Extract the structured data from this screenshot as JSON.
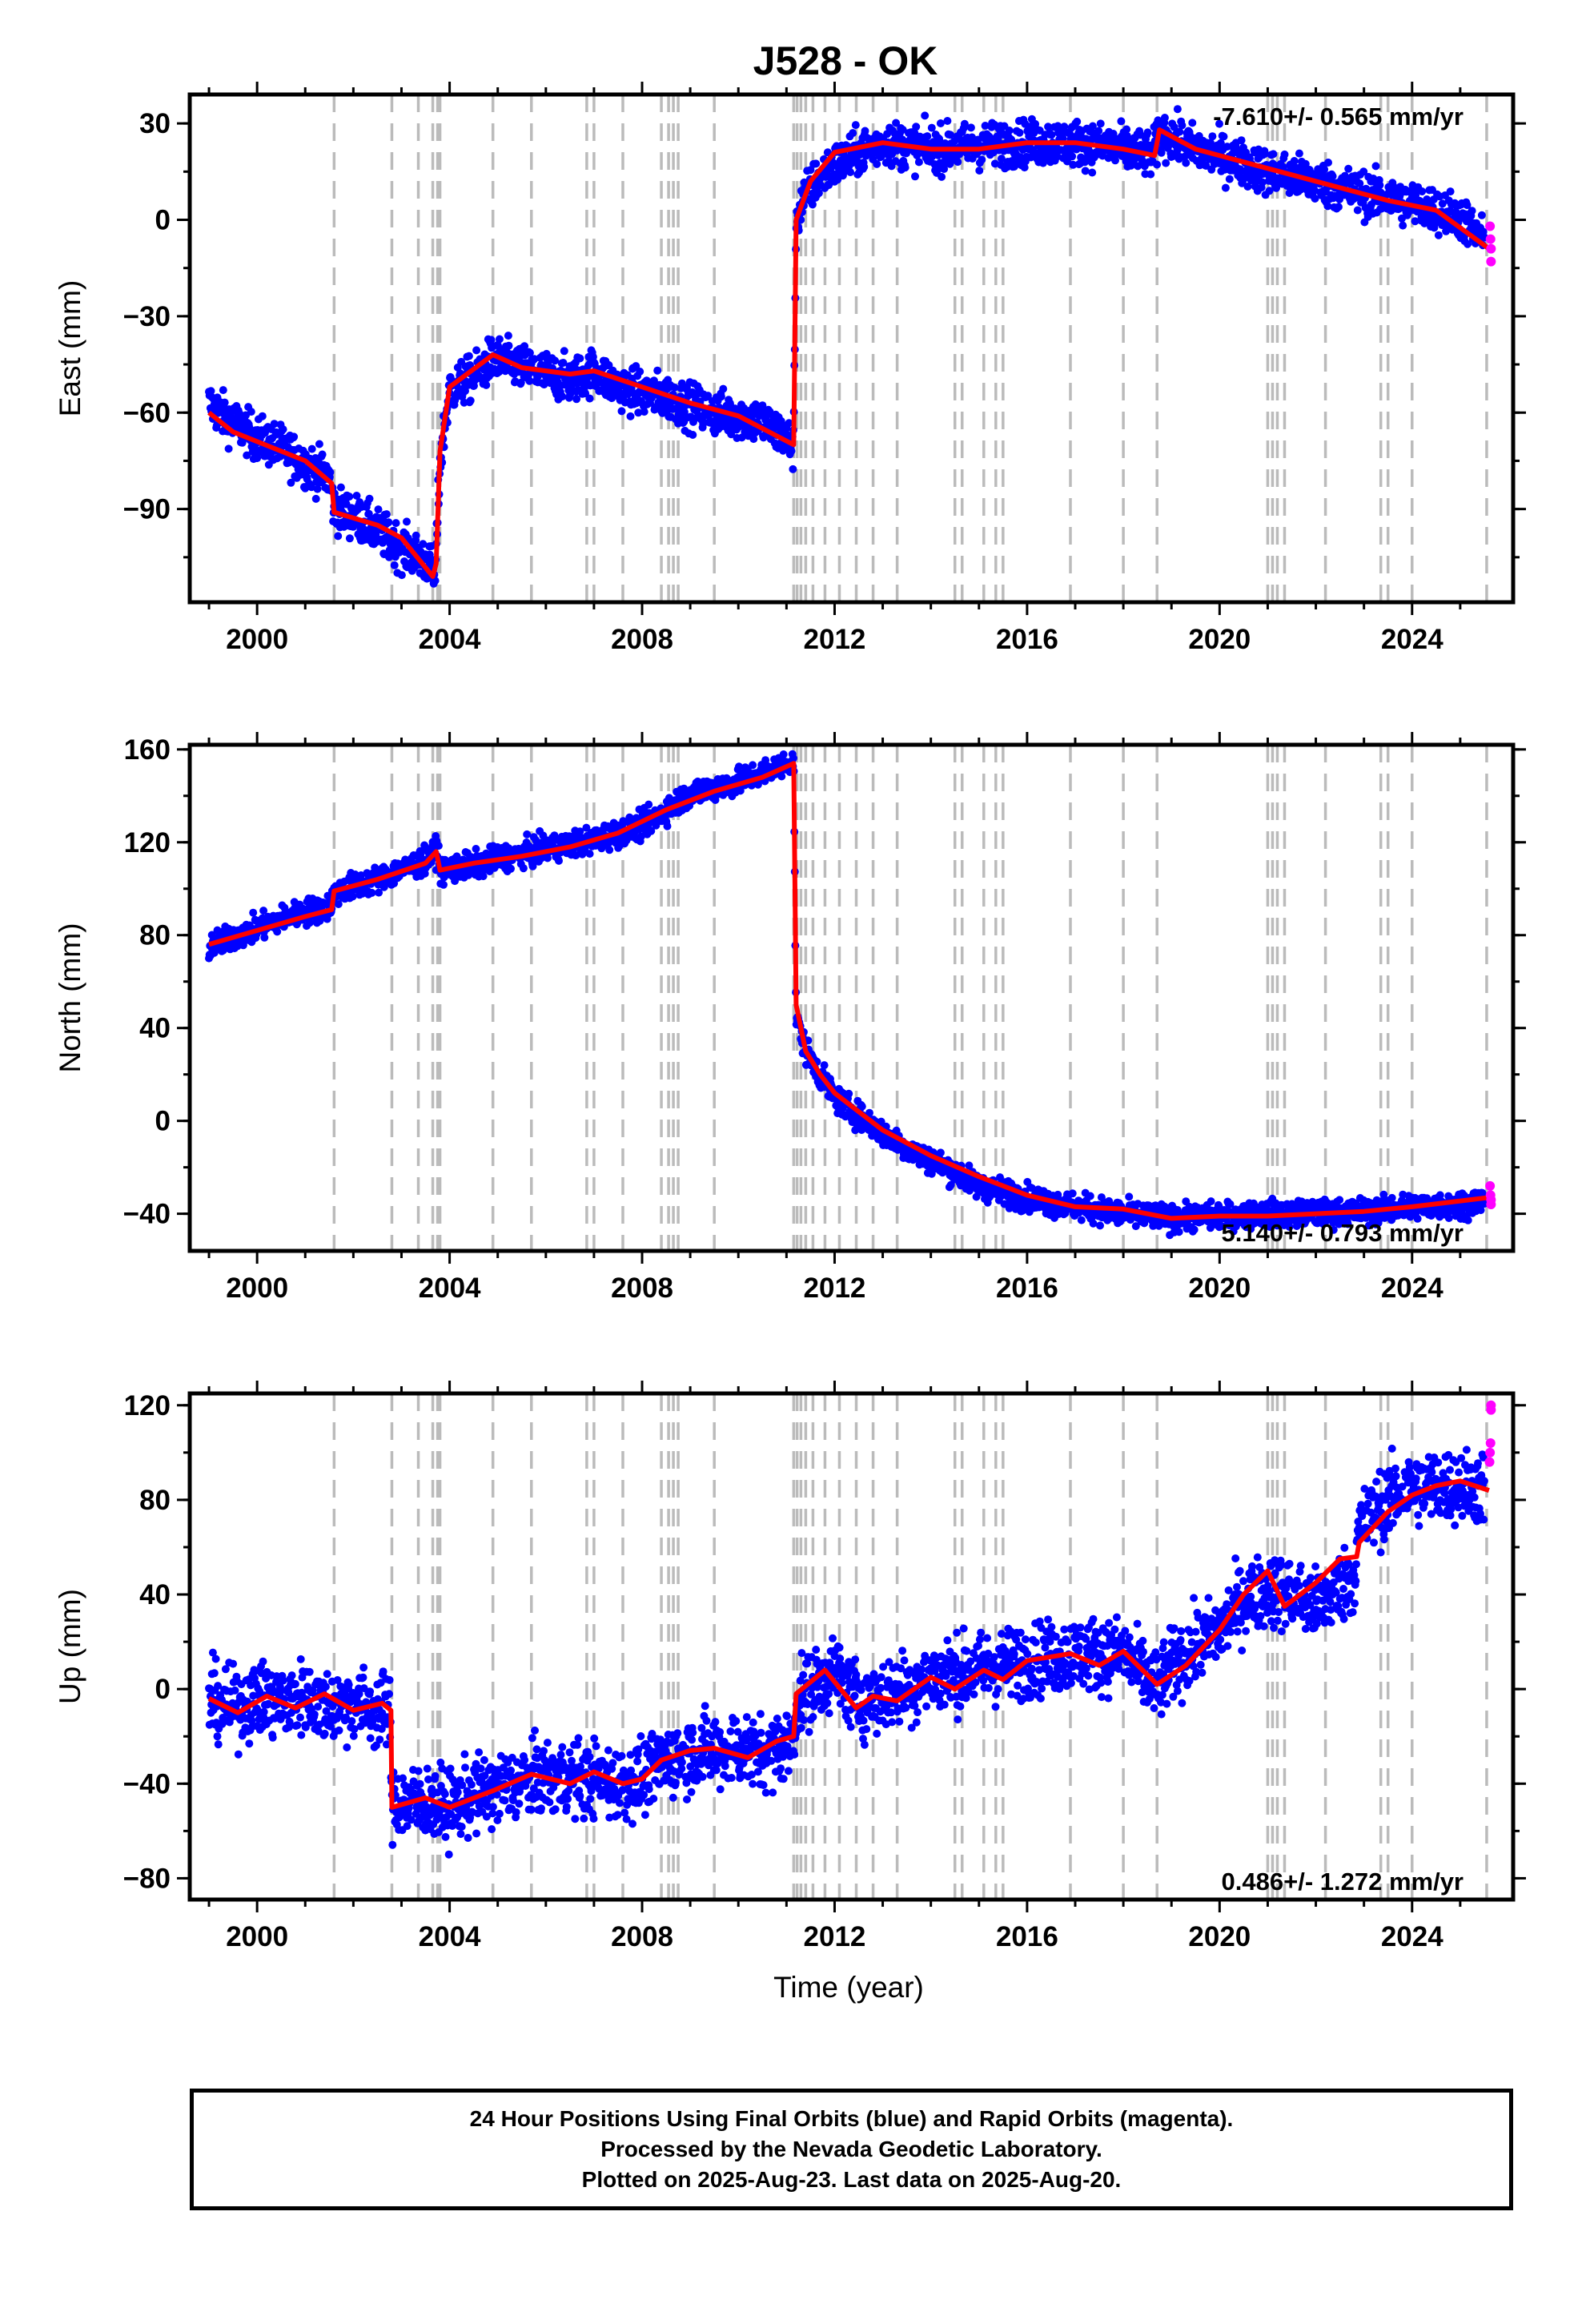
{
  "title": "J528 - OK",
  "xlabel": "Time (year)",
  "caption": {
    "line1": "24 Hour Positions Using Final Orbits (blue) and Rapid Orbits (magenta).",
    "line2": "Processed by the Nevada Geodetic Laboratory.",
    "line3": "Plotted on 2025-Aug-23. Last data on 2025-Aug-20."
  },
  "colors": {
    "final": "#0000ff",
    "rapid": "#ff00ff",
    "model": "#ff0000",
    "steps": "#bbbbbb"
  },
  "chart_data": [
    {
      "type": "scatter",
      "ylabel": "East (mm)",
      "xlim": [
        1998.6,
        2026.1
      ],
      "ylim": [
        -119,
        39
      ],
      "xticks": [
        2000,
        2004,
        2008,
        2012,
        2016,
        2020,
        2024
      ],
      "xtick_labels": [
        "2000",
        "2004",
        "2008",
        "2012",
        "2016",
        "2020",
        "2024"
      ],
      "yticks": [
        30,
        0,
        -30,
        -60,
        -90
      ],
      "ytick_labels": [
        "30",
        "0",
        "−30",
        "−60",
        "−90"
      ],
      "rate_text": "-7.610+/- 0.565 mm/yr",
      "rate_pos": "top-right",
      "step_epochs": [
        2001.6,
        2002.8,
        2003.35,
        2003.65,
        2003.75,
        2003.8,
        2004.9,
        2005.7,
        2006.85,
        2007.0,
        2007.6,
        2008.4,
        2008.55,
        2008.65,
        2008.75,
        2009.5,
        2011.15,
        2011.22,
        2011.3,
        2011.4,
        2011.55,
        2011.8,
        2012.1,
        2012.45,
        2012.8,
        2013.3,
        2014.5,
        2014.65,
        2015.1,
        2015.35,
        2015.5,
        2016.9,
        2018.0,
        2018.7,
        2021.0,
        2021.1,
        2021.2,
        2021.35,
        2022.2,
        2023.35,
        2023.5,
        2024.0,
        2025.55
      ],
      "final_series": {
        "x": [
          1999.0,
          1999.3,
          1999.6,
          2000.0,
          2000.5,
          2001.0,
          2001.5,
          2001.6,
          2002.0,
          2002.5,
          2003.0,
          2003.5,
          2003.7,
          2003.8,
          2004.0,
          2004.5,
          2004.9,
          2005.5,
          2006.0,
          2006.5,
          2007.0,
          2007.5,
          2008.0,
          2008.5,
          2009.0,
          2009.5,
          2010.0,
          2010.5,
          2011.0,
          2011.15,
          2011.2,
          2011.4,
          2011.8,
          2012.5,
          2013.0,
          2014.0,
          2015.0,
          2016.0,
          2017.0,
          2018.0,
          2018.6,
          2018.8,
          2019.5,
          2020.0,
          2021.0,
          2022.0,
          2023.0,
          2024.0,
          2025.0,
          2025.5
        ],
        "y": [
          -57,
          -61,
          -64,
          -68,
          -71,
          -76,
          -80,
          -90,
          -92,
          -97,
          -102,
          -106,
          -111,
          -75,
          -53,
          -49,
          -43,
          -46,
          -48,
          -50,
          -47,
          -52,
          -54,
          -55,
          -58,
          -60,
          -61,
          -63,
          -68,
          -71,
          0,
          8,
          15,
          21,
          24,
          22,
          23,
          24,
          24,
          22,
          20,
          27,
          22,
          20,
          15,
          12,
          8,
          5,
          1,
          -7
        ],
        "spread": 5
      },
      "model_series": {
        "x": [
          1999.0,
          1999.5,
          2000.0,
          2000.5,
          2001.0,
          2001.55,
          2001.6,
          2002.5,
          2003.0,
          2003.65,
          2003.72,
          2003.8,
          2004.0,
          2004.9,
          2005.5,
          2006.5,
          2007.0,
          2008.0,
          2009.0,
          2010.0,
          2011.15,
          2011.2,
          2011.5,
          2012.0,
          2013.0,
          2014.0,
          2015.0,
          2016.0,
          2017.0,
          2018.0,
          2018.65,
          2018.75,
          2019.5,
          2020.5,
          2021.5,
          2022.5,
          2023.5,
          2024.5,
          2025.6
        ],
        "y": [
          -60,
          -66,
          -69,
          -72,
          -75,
          -82,
          -91,
          -95,
          -99,
          -111,
          -107,
          -72,
          -52,
          -42,
          -46,
          -48,
          -47,
          -52,
          -57,
          -61,
          -70,
          0,
          12,
          21,
          24,
          22,
          22,
          24,
          24,
          22,
          20,
          28,
          22,
          18,
          14,
          10,
          6,
          3,
          -9
        ]
      },
      "rapid_series": {
        "x": [
          2025.62,
          2025.63,
          2025.64,
          2025.64
        ],
        "y": [
          -2,
          -6,
          -9,
          -13
        ]
      }
    },
    {
      "type": "scatter",
      "ylabel": "North (mm)",
      "xlim": [
        1998.6,
        2026.1
      ],
      "ylim": [
        -56,
        162
      ],
      "xticks": [
        2000,
        2004,
        2008,
        2012,
        2016,
        2020,
        2024
      ],
      "xtick_labels": [
        "2000",
        "2004",
        "2008",
        "2012",
        "2016",
        "2020",
        "2024"
      ],
      "yticks": [
        160,
        120,
        80,
        40,
        0,
        -40
      ],
      "ytick_labels": [
        "160",
        "120",
        "80",
        "40",
        "0",
        "−40"
      ],
      "rate_text": "5.140+/- 0.793 mm/yr",
      "rate_pos": "bottom-right",
      "step_epochs": [
        2001.6,
        2002.8,
        2003.35,
        2003.65,
        2003.75,
        2003.8,
        2004.9,
        2005.7,
        2006.85,
        2007.0,
        2007.6,
        2008.4,
        2008.55,
        2008.65,
        2008.75,
        2009.5,
        2011.15,
        2011.22,
        2011.3,
        2011.4,
        2011.55,
        2011.8,
        2012.1,
        2012.45,
        2012.8,
        2013.3,
        2014.5,
        2014.65,
        2015.1,
        2015.35,
        2015.5,
        2016.9,
        2018.0,
        2018.7,
        2021.0,
        2021.1,
        2021.2,
        2021.35,
        2022.2,
        2023.35,
        2023.5,
        2024.0,
        2025.55
      ],
      "final_series": {
        "x": [
          1999.0,
          1999.5,
          2000.0,
          2000.5,
          2001.0,
          2001.5,
          2001.6,
          2002.0,
          2002.5,
          2003.0,
          2003.5,
          2003.75,
          2003.8,
          2004.5,
          2005.0,
          2006.0,
          2007.0,
          2008.0,
          2008.5,
          2009.0,
          2010.0,
          2010.5,
          2011.0,
          2011.15,
          2011.2,
          2011.4,
          2011.7,
          2012.0,
          2012.5,
          2013.0,
          2013.5,
          2014.0,
          2014.5,
          2015.0,
          2016.0,
          2017.0,
          2018.0,
          2019.0,
          2020.0,
          2021.0,
          2022.0,
          2023.0,
          2024.0,
          2025.0,
          2025.5
        ],
        "y": [
          75,
          79,
          83,
          87,
          90,
          92,
          98,
          101,
          104,
          108,
          112,
          117,
          108,
          110,
          113,
          117,
          121,
          127,
          134,
          141,
          146,
          150,
          154,
          156,
          45,
          30,
          20,
          10,
          2,
          -5,
          -12,
          -17,
          -22,
          -28,
          -33,
          -37,
          -40,
          -42,
          -41,
          -40,
          -40,
          -39,
          -37,
          -36,
          -34
        ],
        "spread": 4
      },
      "model_series": {
        "x": [
          1999.0,
          2000.0,
          2001.0,
          2001.55,
          2001.6,
          2002.5,
          2003.5,
          2003.72,
          2003.8,
          2004.5,
          2005.5,
          2006.5,
          2007.5,
          2008.5,
          2009.5,
          2010.5,
          2011.15,
          2011.2,
          2011.4,
          2011.7,
          2012.0,
          2012.5,
          2013.0,
          2014.0,
          2015.0,
          2016.0,
          2017.0,
          2018.0,
          2019.0,
          2020.0,
          2021.0,
          2022.0,
          2023.0,
          2024.0,
          2025.6
        ],
        "y": [
          76,
          82,
          88,
          91,
          99,
          104,
          111,
          116,
          108,
          111,
          114,
          118,
          124,
          134,
          142,
          148,
          154,
          50,
          30,
          20,
          12,
          4,
          -4,
          -15,
          -24,
          -32,
          -37,
          -38,
          -42,
          -41,
          -41,
          -40,
          -39,
          -37,
          -33
        ]
      },
      "rapid_series": {
        "x": [
          2025.62,
          2025.63,
          2025.64,
          2025.64
        ],
        "y": [
          -28,
          -32,
          -34,
          -36
        ]
      }
    },
    {
      "type": "scatter",
      "ylabel": "Up (mm)",
      "xlim": [
        1998.6,
        2026.1
      ],
      "ylim": [
        -89,
        125
      ],
      "xticks": [
        2000,
        2004,
        2008,
        2012,
        2016,
        2020,
        2024
      ],
      "xtick_labels": [
        "2000",
        "2004",
        "2008",
        "2012",
        "2016",
        "2020",
        "2024"
      ],
      "yticks": [
        120,
        80,
        40,
        0,
        -40,
        -80
      ],
      "ytick_labels": [
        "120",
        "80",
        "40",
        "0",
        "−40",
        "−80"
      ],
      "rate_text": "0.486+/- 1.272 mm/yr",
      "rate_pos": "bottom-right",
      "step_epochs": [
        2001.6,
        2002.8,
        2003.35,
        2003.65,
        2003.75,
        2003.8,
        2004.9,
        2005.7,
        2006.85,
        2007.0,
        2007.6,
        2008.4,
        2008.55,
        2008.65,
        2008.75,
        2009.5,
        2011.15,
        2011.22,
        2011.3,
        2011.4,
        2011.55,
        2011.8,
        2012.1,
        2012.45,
        2012.8,
        2013.3,
        2014.5,
        2014.65,
        2015.1,
        2015.35,
        2015.5,
        2016.9,
        2018.0,
        2018.7,
        2021.0,
        2021.1,
        2021.2,
        2021.35,
        2022.2,
        2023.35,
        2023.5,
        2024.0,
        2025.55
      ],
      "final_series": {
        "x": [
          1999.0,
          1999.5,
          2000.0,
          2000.5,
          2001.0,
          2001.5,
          2002.0,
          2002.5,
          2002.75,
          2002.8,
          2003.5,
          2004.0,
          2004.5,
          2005.0,
          2006.0,
          2007.0,
          2007.5,
          2008.0,
          2008.5,
          2009.0,
          2010.0,
          2010.5,
          2011.15,
          2011.2,
          2012.0,
          2012.5,
          2013.0,
          2014.0,
          2015.0,
          2016.0,
          2017.0,
          2018.0,
          2018.7,
          2019.0,
          2020.0,
          2020.5,
          2021.0,
          2021.5,
          2022.0,
          2022.8,
          2022.9,
          2023.5,
          2024.0,
          2025.0,
          2025.5
        ],
        "y": [
          -5,
          -8,
          -4,
          -6,
          -3,
          -8,
          -5,
          -10,
          -9,
          -48,
          -48,
          -50,
          -45,
          -42,
          -37,
          -38,
          -40,
          -38,
          -30,
          -27,
          -25,
          -28,
          -22,
          -5,
          8,
          -5,
          -3,
          5,
          8,
          12,
          15,
          15,
          0,
          10,
          25,
          38,
          42,
          40,
          35,
          48,
          68,
          80,
          85,
          86,
          85
        ],
        "spread": 11
      },
      "model_series": {
        "x": [
          1999.0,
          1999.6,
          2000.2,
          2000.8,
          2001.4,
          2002.0,
          2002.6,
          2002.78,
          2002.8,
          2003.5,
          2004.0,
          2004.9,
          2005.7,
          2006.5,
          2007.0,
          2007.6,
          2008.0,
          2008.4,
          2009.0,
          2009.5,
          2010.2,
          2010.8,
          2011.15,
          2011.2,
          2011.8,
          2012.45,
          2012.8,
          2013.3,
          2014.0,
          2014.5,
          2015.1,
          2015.5,
          2016.0,
          2016.9,
          2017.5,
          2018.0,
          2018.7,
          2019.3,
          2020.0,
          2020.5,
          2021.0,
          2021.35,
          2022.0,
          2022.5,
          2022.85,
          2022.9,
          2023.5,
          2024.0,
          2024.5,
          2025.0,
          2025.6
        ],
        "y": [
          -4,
          -10,
          -3,
          -8,
          -2,
          -9,
          -6,
          -9,
          -50,
          -46,
          -50,
          -43,
          -36,
          -40,
          -35,
          -40,
          -38,
          -30,
          -26,
          -25,
          -29,
          -22,
          -20,
          -2,
          8,
          -8,
          -3,
          -5,
          5,
          0,
          8,
          4,
          12,
          15,
          10,
          16,
          2,
          10,
          25,
          40,
          50,
          35,
          45,
          55,
          56,
          62,
          75,
          82,
          86,
          88,
          84
        ]
      },
      "rapid_series": {
        "x": [
          2025.61,
          2025.62,
          2025.63,
          2025.64,
          2025.64
        ],
        "y": [
          96,
          100,
          104,
          118,
          120
        ]
      }
    }
  ]
}
